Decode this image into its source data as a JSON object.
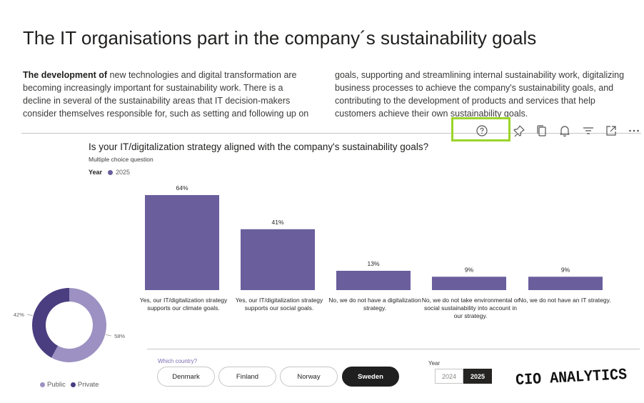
{
  "page": {
    "title": "The IT organisations part in the company´s sustainability goals",
    "intro_bold": "The development of",
    "intro_left_rest": " new technologies and digital transformation are becoming increasingly important for sustainability work. There is a decline in several of the sustainability areas that IT decision-makers consider themselves responsible for, such as setting and following up on",
    "intro_right": "goals, supporting and streamlining internal sustainability work, digitalizing business processes to achieve the company's sustainability goals, and contributing to the development of products and services that help customers achieve their own sustainability goals."
  },
  "toolbar": {
    "icons": [
      "help-icon",
      "pin-icon",
      "copy-icon",
      "bell-icon",
      "filter-icon",
      "expand-icon",
      "more-icon"
    ]
  },
  "chart_data": {
    "type": "bar",
    "title": "Is your IT/digitalization strategy aligned with the company's sustainability goals?",
    "subtitle": "Multiple choice question",
    "legend_title": "Year",
    "series": [
      {
        "name": "2025",
        "color": "#6a5e9d",
        "values": [
          64,
          41,
          13,
          9,
          9
        ]
      }
    ],
    "categories": [
      "Yes, our IT/digitalization strategy supports our climate goals.",
      "Yes, our IT/digitalization strategy supports our social goals.",
      "No, we do not have a digitalization strategy.",
      "No, we do not take environmental or social sustainability into account in our strategy.",
      "No, we do not have an IT strategy."
    ],
    "data_labels": [
      "64%",
      "41%",
      "13%",
      "9%",
      "9%"
    ],
    "ylim": [
      0,
      64
    ],
    "unit": "%"
  },
  "donut_data": {
    "type": "pie",
    "slices": [
      {
        "name": "Public",
        "value": 58,
        "label": "58%",
        "color": "#9c91c2"
      },
      {
        "name": "Private",
        "value": 42,
        "label": "42%",
        "color": "#4a3d80"
      }
    ]
  },
  "country_slicer": {
    "title": "Which country?",
    "options": [
      "Denmark",
      "Finland",
      "Norway",
      "Sweden"
    ],
    "selected": "Sweden"
  },
  "year_slicer": {
    "title": "Year",
    "options": [
      "2024",
      "2025"
    ],
    "selected": "2025"
  },
  "brand": {
    "logo_text": "CIO ANALYTICS"
  }
}
